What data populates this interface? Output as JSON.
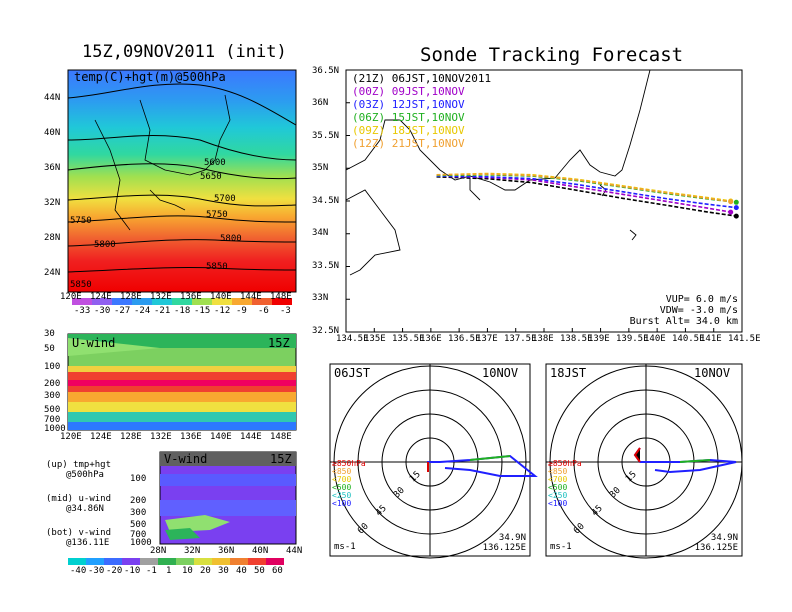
{
  "left": {
    "main_title": "15Z,09NOV2011 (init)",
    "map_label": "temp(C)+hgt(m)@500hPa",
    "lat_ticks": [
      "44N",
      "40N",
      "36N",
      "32N",
      "28N",
      "24N"
    ],
    "lon_ticks": [
      "120E",
      "124E",
      "128E",
      "132E",
      "136E",
      "140E",
      "144E",
      "148E"
    ],
    "contour_labels": [
      "5600",
      "5650",
      "5700",
      "5750",
      "5750",
      "5800",
      "5800",
      "5850",
      "5850"
    ],
    "colorbar_labels": [
      "-33",
      "-30",
      "-27",
      "-24",
      "-21",
      "-18",
      "-15",
      "-12",
      "-9",
      "-6",
      "-3"
    ],
    "u_label": "U-wind",
    "u_time": "15Z",
    "p_ticks": [
      "30",
      "50",
      "100",
      "200",
      "300",
      "500",
      "700",
      "1000"
    ],
    "v_label": "V-wind",
    "v_time": "15Z",
    "v_p_ticks": [
      "100",
      "200",
      "300",
      "500",
      "700",
      "1000"
    ],
    "lat_ticks2": [
      "28N",
      "32N",
      "36N",
      "40N",
      "44N"
    ],
    "legend_lines": [
      [
        "(up) tmp+hgt",
        "@500hPa"
      ],
      [
        "(mid) u-wind",
        "@34.86N"
      ],
      [
        "(bot) v-wind",
        "@136.11E"
      ]
    ],
    "wind_colorbar_labels": [
      "-40",
      "-30",
      "-20",
      "-10",
      "-1",
      "1",
      "10",
      "20",
      "30",
      "40",
      "50",
      "60"
    ]
  },
  "track": {
    "title": "Sonde Tracking Forecast",
    "legend": [
      {
        "label": "(21Z) 06JST,10NOV2011",
        "color": "#000000"
      },
      {
        "label": "(00Z) 09JST,10NOV",
        "color": "#a000c8"
      },
      {
        "label": "(03Z) 12JST,10NOV",
        "color": "#2020ff"
      },
      {
        "label": "(06Z) 15JST,10NOV",
        "color": "#20b020"
      },
      {
        "label": "(09Z) 18JST,10NOV",
        "color": "#e8c800"
      },
      {
        "label": "(12Z) 21JST,10NOV",
        "color": "#f0a030"
      }
    ],
    "lat_ticks": [
      "36.5N",
      "36N",
      "35.5N",
      "35N",
      "34.5N",
      "34N",
      "33.5N",
      "33N",
      "32.5N"
    ],
    "lon_ticks": [
      "134.5E",
      "135E",
      "135.5E",
      "136E",
      "136.5E",
      "137E",
      "137.5E",
      "138E",
      "138.5E",
      "139E",
      "139.5E",
      "140E",
      "140.5E",
      "141E",
      "141.5E"
    ],
    "vup": "VUP=  6.0 m/s",
    "vdw": "VDW= -3.0 m/s",
    "burst": "Burst Alt= 34.0 km"
  },
  "chart_data": [
    {
      "type": "line",
      "title": "Sonde Tracking Forecast",
      "x_unit": "deg E",
      "y_unit": "deg N",
      "xlim": [
        134.5,
        141.5
      ],
      "ylim": [
        32.5,
        36.5
      ],
      "series": [
        {
          "name": "(21Z) 06JST,10NOV2011",
          "x": [
            136.1,
            137.0,
            137.8,
            138.6,
            139.4,
            140.2,
            140.9,
            141.4
          ],
          "y": [
            34.87,
            34.84,
            34.78,
            34.66,
            34.54,
            34.43,
            34.33,
            34.27
          ]
        },
        {
          "name": "(00Z) 09JST,10NOV",
          "x": [
            136.1,
            137.0,
            137.8,
            138.6,
            139.4,
            140.2,
            140.9,
            141.3
          ],
          "y": [
            34.88,
            34.86,
            34.82,
            34.71,
            34.6,
            34.49,
            34.39,
            34.33
          ]
        },
        {
          "name": "(03Z) 12JST,10NOV",
          "x": [
            136.1,
            137.0,
            137.8,
            138.6,
            139.4,
            140.2,
            140.9,
            141.4
          ],
          "y": [
            34.88,
            34.87,
            34.84,
            34.75,
            34.64,
            34.53,
            34.45,
            34.4
          ]
        },
        {
          "name": "(06Z) 15JST,10NOV",
          "x": [
            136.1,
            137.0,
            137.8,
            138.6,
            139.4,
            140.2,
            140.9,
            141.4
          ],
          "y": [
            34.89,
            34.9,
            34.88,
            34.81,
            34.71,
            34.61,
            34.53,
            34.48
          ]
        },
        {
          "name": "(09Z) 18JST,10NOV",
          "x": [
            136.1,
            137.0,
            137.8,
            138.6,
            139.4,
            140.2,
            140.9,
            141.3
          ],
          "y": [
            34.9,
            34.92,
            34.9,
            34.83,
            34.73,
            34.63,
            34.55,
            34.5
          ]
        },
        {
          "name": "(12Z) 21JST,10NOV",
          "x": [
            136.1,
            137.0,
            137.8,
            138.6,
            139.4,
            140.2,
            140.9,
            141.3
          ],
          "y": [
            34.9,
            34.91,
            34.89,
            34.82,
            34.72,
            34.62,
            34.54,
            34.49
          ]
        }
      ]
    }
  ],
  "hodo": [
    {
      "time": "06JST",
      "date": "10NOV",
      "rings": [
        "15",
        "30",
        "45",
        "60"
      ],
      "levels": [
        {
          "label": "≥850hPa",
          "color": "#e00000"
        },
        {
          "label": "<850",
          "color": "#f0a030"
        },
        {
          "label": "<700",
          "color": "#e8c800"
        },
        {
          "label": "<500",
          "color": "#20b020"
        },
        {
          "label": "<250",
          "color": "#20c0c0"
        },
        {
          "label": "<100",
          "color": "#2020ff"
        }
      ],
      "unit": "ms-1",
      "loc1": "34.9N",
      "loc2": "136.125E"
    },
    {
      "time": "18JST",
      "date": "10NOV",
      "rings": [
        "15",
        "30",
        "45",
        "60"
      ],
      "levels": [
        {
          "label": "≥850hPa",
          "color": "#e00000"
        },
        {
          "label": "<850",
          "color": "#f0a030"
        },
        {
          "label": "<700",
          "color": "#e8c800"
        },
        {
          "label": "<500",
          "color": "#20b020"
        },
        {
          "label": "<250",
          "color": "#20c0c0"
        },
        {
          "label": "<100",
          "color": "#2020ff"
        }
      ],
      "unit": "ms-1",
      "loc1": "34.9N",
      "loc2": "136.125E"
    }
  ]
}
